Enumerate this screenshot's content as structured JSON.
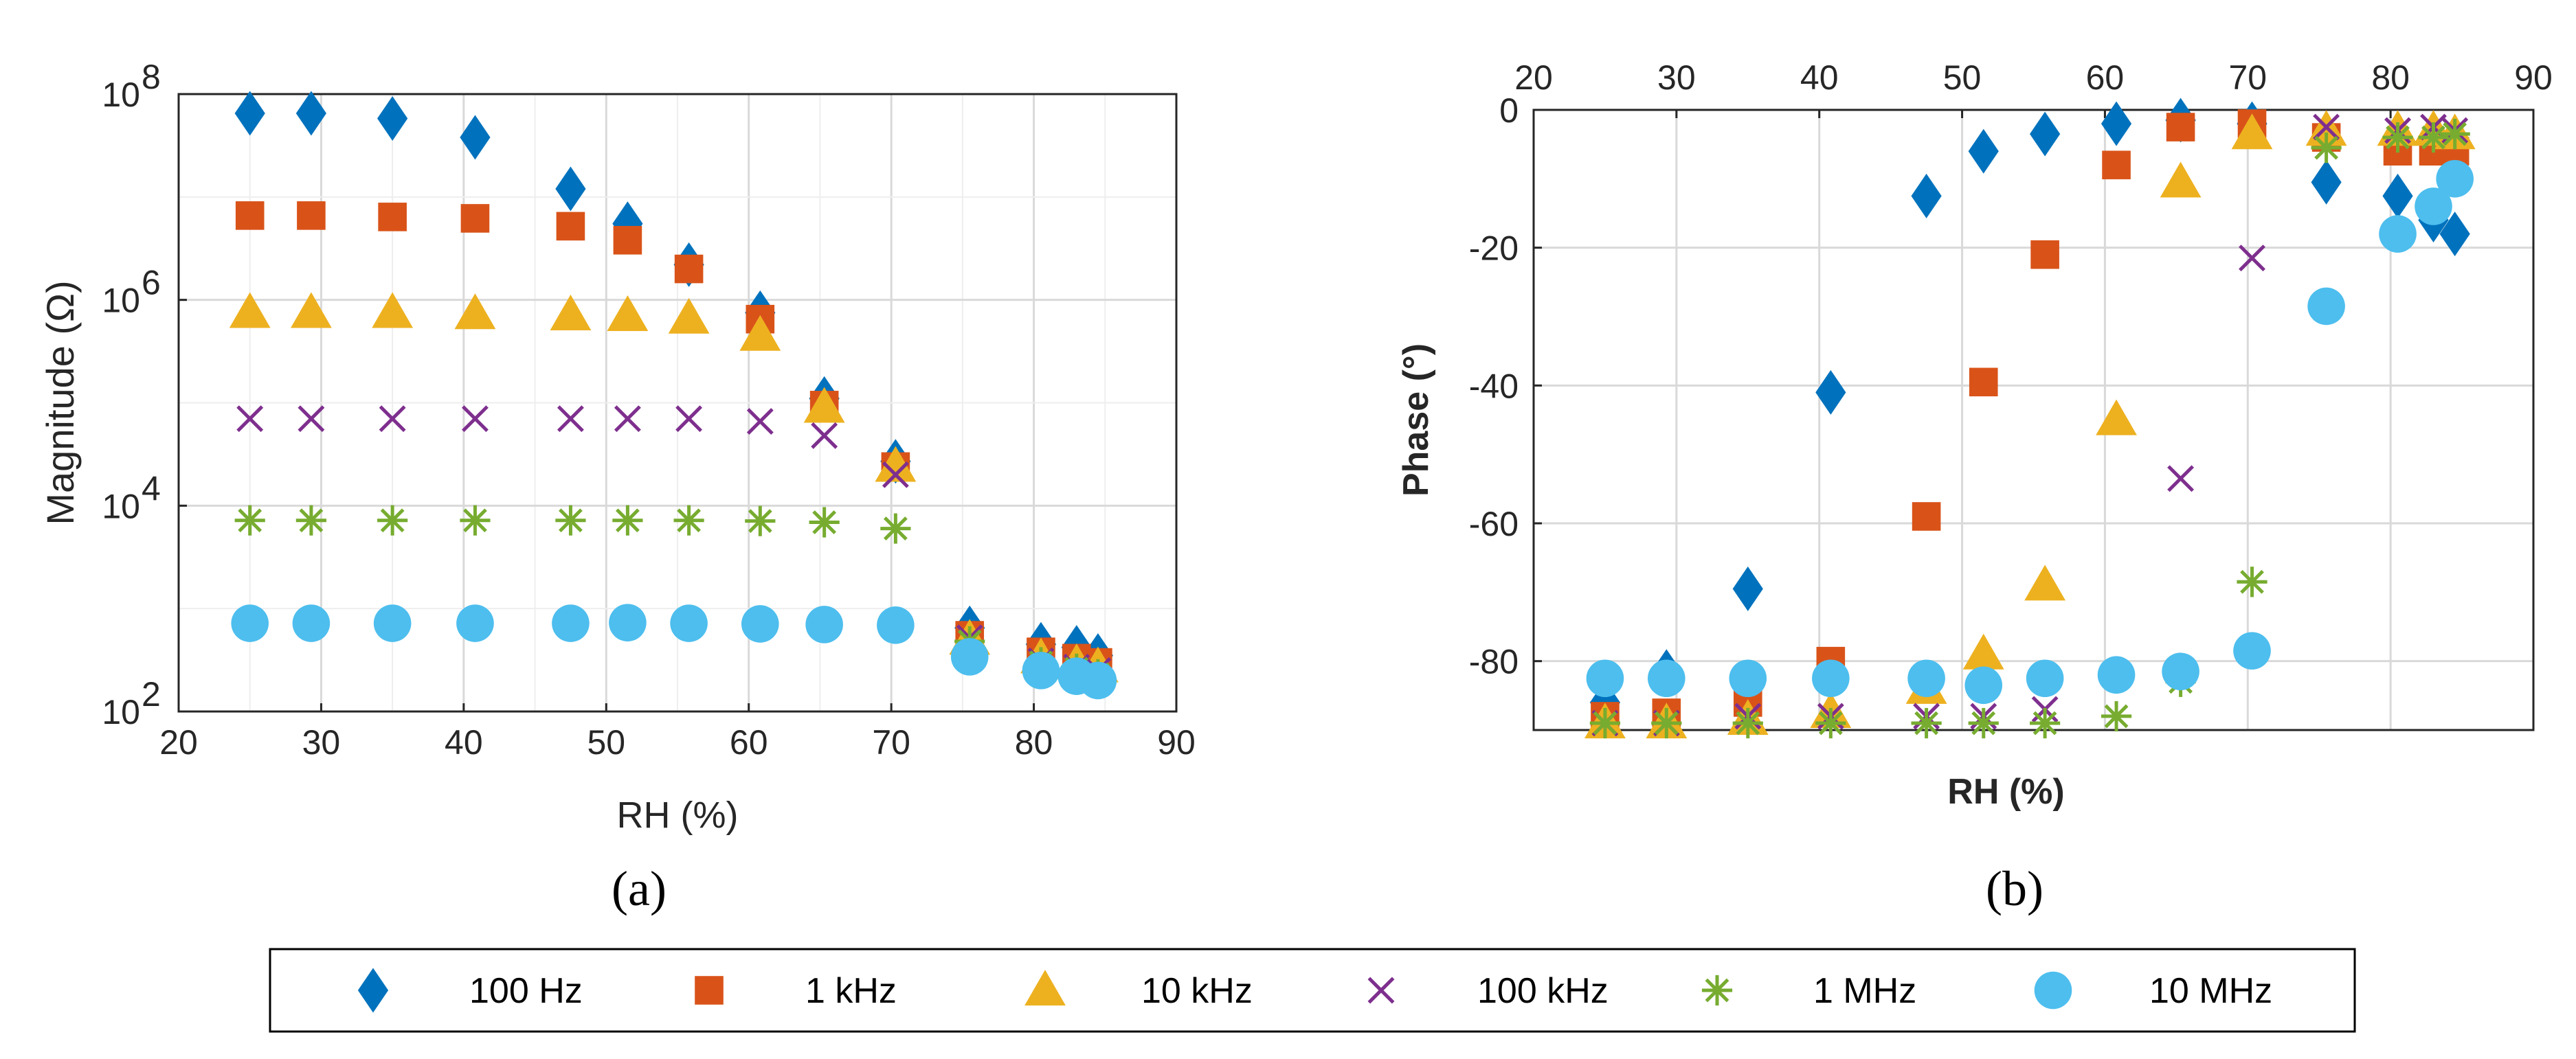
{
  "colors": {
    "100 Hz": "#0072BD",
    "1 kHz": "#D95319",
    "10 kHz": "#EDB120",
    "100 kHz": "#7E2F8E",
    "1 MHz": "#77AC30",
    "10 MHz": "#4DBEEE"
  },
  "markers": {
    "100 Hz": "diamond",
    "1 kHz": "square",
    "10 kHz": "triangle",
    "100 kHz": "x",
    "1 MHz": "asterisk",
    "10 MHz": "circle"
  },
  "captions": {
    "a": "(a)",
    "b": "(b)"
  },
  "legend": [
    "100 Hz",
    "1 kHz",
    "10 kHz",
    "100 kHz",
    "1 MHz",
    "10 MHz"
  ],
  "chart_data": [
    {
      "id": "a",
      "type": "scatter",
      "title": "",
      "xlabel": "RH (%)",
      "ylabel": "Magnitude (Ω)",
      "yscale": "log",
      "xlim": [
        20,
        90
      ],
      "ylim_exp": [
        2,
        8
      ],
      "xticks": [
        "20",
        "30",
        "40",
        "50",
        "60",
        "70",
        "80",
        "90"
      ],
      "ytick_base": "10",
      "ytick_exps": [
        "2",
        "4",
        "6",
        "8"
      ],
      "x": [
        25,
        29.3,
        35,
        40.8,
        47.5,
        51.5,
        55.8,
        60.8,
        65.3,
        70.3,
        75.5,
        80.5,
        83,
        84.5
      ],
      "series": [
        {
          "name": "100 Hz",
          "values": [
            65000000,
            65000000,
            58000000,
            38000000,
            12000000,
            5500000,
            2200000,
            750000,
            110000,
            27000,
            650,
            450,
            420,
            350
          ]
        },
        {
          "name": "1 kHz",
          "values": [
            6600000,
            6600000,
            6400000,
            6200000,
            5200000,
            3800000,
            2000000,
            650000,
            95000,
            24000,
            550,
            380,
            330,
            300
          ]
        },
        {
          "name": "10 kHz",
          "values": [
            750000,
            750000,
            750000,
            730000,
            710000,
            700000,
            660000,
            450000,
            90000,
            24000,
            500,
            330,
            290,
            270
          ]
        },
        {
          "name": "100 kHz",
          "values": [
            70000,
            70000,
            70000,
            70000,
            70000,
            70000,
            70000,
            66000,
            48000,
            20000,
            520,
            310,
            270,
            250
          ]
        },
        {
          "name": "1 MHz",
          "values": [
            7200,
            7200,
            7200,
            7200,
            7200,
            7200,
            7200,
            7100,
            6900,
            6000,
            480,
            300,
            260,
            230
          ]
        },
        {
          "name": "10 MHz",
          "values": [
            720,
            720,
            720,
            720,
            720,
            730,
            720,
            710,
            700,
            690,
            340,
            250,
            220,
            200
          ]
        }
      ]
    },
    {
      "id": "b",
      "type": "scatter",
      "title": "",
      "xlabel": "RH (%)",
      "ylabel": "Phase (°)",
      "xaxis_position": "top",
      "xlim": [
        20,
        90
      ],
      "ylim": [
        -90,
        0
      ],
      "xticks": [
        "20",
        "30",
        "40",
        "50",
        "60",
        "70",
        "80",
        "90"
      ],
      "yticks": [
        "-80",
        "-60",
        "-40",
        "-20",
        "0"
      ],
      "x": [
        25,
        29.3,
        35,
        40.8,
        47.5,
        51.5,
        55.8,
        60.8,
        65.3,
        70.3,
        75.5,
        80.5,
        83,
        84.5
      ],
      "series": [
        {
          "name": "100 Hz",
          "values": [
            -86,
            -81.5,
            -69.5,
            -41,
            -12.5,
            -6,
            -3.5,
            -2,
            -1.5,
            -2,
            -10.5,
            -12.5,
            -16,
            -18
          ]
        },
        {
          "name": "1 kHz",
          "values": [
            -88,
            -87.5,
            -86,
            -80,
            -59,
            -39.5,
            -21,
            -8,
            -2.5,
            -2,
            -4,
            -6,
            -6,
            -6
          ]
        },
        {
          "name": "10 kHz",
          "values": [
            -89,
            -89,
            -88.5,
            -87.5,
            -84,
            -79,
            -69,
            -45,
            -10.5,
            -3.5,
            -3,
            -3,
            -3,
            -3.5
          ]
        },
        {
          "name": "100 kHz",
          "values": [
            -89,
            -89,
            -88,
            -88,
            -88,
            -88,
            -87,
            -82,
            -53.5,
            -21.5,
            -2.5,
            -3,
            -2.5,
            -3
          ]
        },
        {
          "name": "1 MHz",
          "values": [
            -89,
            -89,
            -89,
            -89,
            -89,
            -89,
            -89,
            -88,
            -83,
            -68.5,
            -5.5,
            -4,
            -4,
            -3.5
          ]
        },
        {
          "name": "10 MHz",
          "values": [
            -82.5,
            -82.5,
            -82.5,
            -82.5,
            -82.5,
            -83.5,
            -82.5,
            -82,
            -81.5,
            -78.5,
            -28.5,
            -18,
            -14,
            -10
          ]
        }
      ]
    }
  ]
}
